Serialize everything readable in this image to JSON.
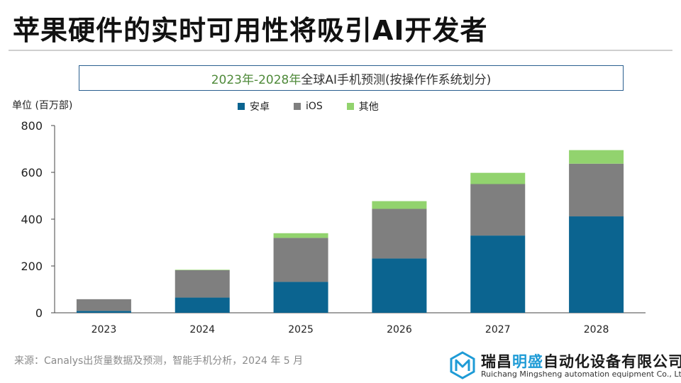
{
  "page": {
    "title": "苹果硬件的实时可用性将吸引AI开发者"
  },
  "chart_data": {
    "type": "bar",
    "stacked": true,
    "title_year": "2023年-2028年",
    "title_rest": " 全球AI手机预测(按操作作系统划分)",
    "ylabel": "单位 (百万部)",
    "categories": [
      "2023",
      "2024",
      "2025",
      "2026",
      "2027",
      "2028"
    ],
    "series": [
      {
        "name": "安卓",
        "color": "#0b6490",
        "values": [
          8,
          65,
          132,
          232,
          330,
          412
        ]
      },
      {
        "name": "iOS",
        "color": "#7f7f7f",
        "values": [
          50,
          117,
          188,
          212,
          220,
          225
        ]
      },
      {
        "name": "其他",
        "color": "#92d36e",
        "values": [
          0,
          2,
          20,
          33,
          48,
          58
        ]
      }
    ],
    "ylim": [
      0,
      800
    ],
    "yticks": [
      "0",
      "200",
      "400",
      "600",
      "800"
    ],
    "legend_position": "top-center",
    "grid": false
  },
  "footer": {
    "source": "来源：Canalys出货量数据及预测，智能手机分析，2024 年 5 月"
  },
  "brand": {
    "name_part1": "瑞昌",
    "name_highlight": "明盛",
    "name_part2": "自动化设备有限公司",
    "subtitle": "Ruichang Mingsheng automation equipment Co., Ltd",
    "logo_icon": "hexagon-m-logo-icon",
    "logo_color": "#1e9bd6"
  }
}
